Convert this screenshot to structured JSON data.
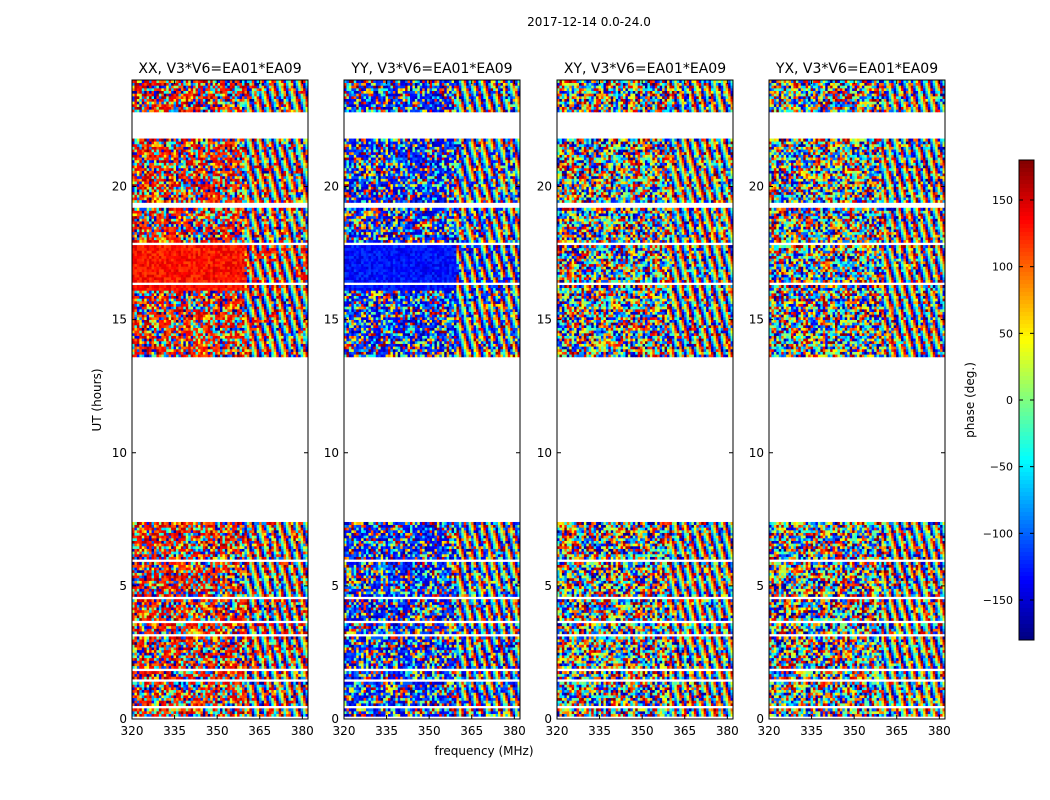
{
  "chart_data": {
    "type": "heatmap",
    "suptitle": "2017-12-14 0.0-24.0",
    "xlabel": "frequency (MHz)",
    "ylabel": "UT (hours)",
    "xlim": [
      320,
      382
    ],
    "ylim": [
      0,
      24
    ],
    "xticks": [
      320,
      335,
      350,
      365,
      380
    ],
    "yticks": [
      0,
      5,
      10,
      15,
      20
    ],
    "panels": [
      {
        "title": "XX, V3*V6=EA01*EA09",
        "baseline_phase": 130
      },
      {
        "title": "YY, V3*V6=EA01*EA09",
        "baseline_phase": -130
      },
      {
        "title": "XY, V3*V6=EA01*EA09",
        "baseline_phase": null
      },
      {
        "title": "YX, V3*V6=EA01*EA09",
        "baseline_phase": null
      }
    ],
    "colorbar": {
      "label": "phase (deg.)",
      "range": [
        -180,
        180
      ],
      "ticks": [
        -150,
        -100,
        -50,
        0,
        50,
        100,
        150
      ],
      "colormap": "jet"
    },
    "data_gaps_hours": [
      [
        0.05,
        0.1
      ],
      [
        0.4,
        0.5
      ],
      [
        1.4,
        1.5
      ],
      [
        1.8,
        1.9
      ],
      [
        3.15,
        3.25
      ],
      [
        3.6,
        3.7
      ],
      [
        4.5,
        4.65
      ],
      [
        5.9,
        6.0
      ],
      [
        7.45,
        13.65
      ],
      [
        15.3,
        15.35
      ],
      [
        16.3,
        16.4
      ],
      [
        17.0,
        17.05
      ],
      [
        17.8,
        17.95
      ],
      [
        19.2,
        19.45
      ],
      [
        21.8,
        22.8
      ]
    ],
    "fringe_onset_mhz": 360
  },
  "colors": {
    "background": "#ffffff",
    "axes": "#000000"
  }
}
